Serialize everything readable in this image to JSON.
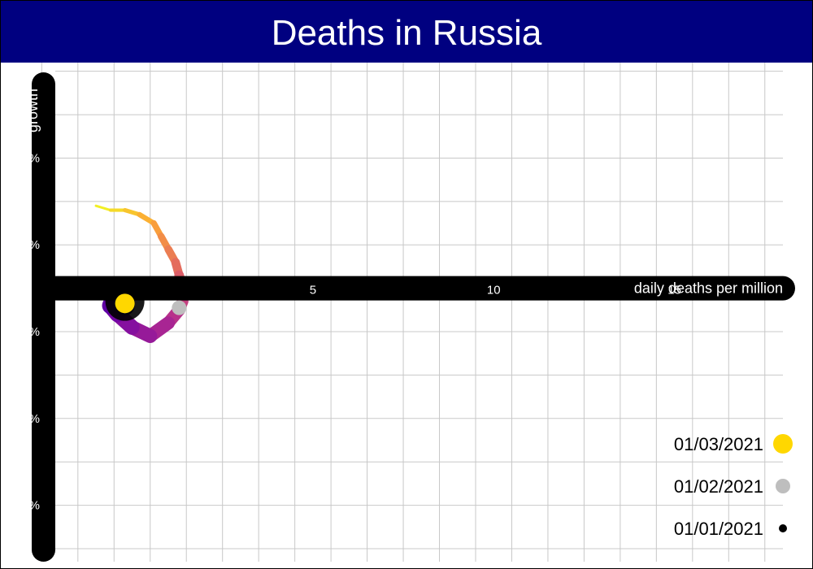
{
  "header": {
    "title": "Deaths in Russia"
  },
  "colors": {
    "header_bg": "#000080",
    "axis_bar": "#000000",
    "grid": "#c8c8c8",
    "axis_text": "#ffffff",
    "legend_text": "#000000"
  },
  "chart_data": {
    "type": "scatter",
    "title": "Deaths in Russia",
    "xlabel": "daily deaths per million",
    "ylabel": "growth",
    "xlim": [
      -2.8,
      18.0
    ],
    "ylim": [
      -6.3,
      5.2
    ],
    "x_ticks": [
      5,
      10,
      15
    ],
    "x_tick_labels": [
      "5",
      "10",
      "15"
    ],
    "y_ticks": [
      3,
      1,
      -1,
      -3,
      -5
    ],
    "y_tick_labels": [
      "3%",
      "1%",
      "-1%",
      "-3%",
      "-5%"
    ],
    "grid": true,
    "legend_position": "bottom-right",
    "trajectory_color_scale": [
      "#0d0887",
      "#6a00a8",
      "#b12a90",
      "#e16462",
      "#fca636",
      "#f0f921"
    ],
    "trajectory": [
      {
        "x": -1.0,
        "y": 1.9
      },
      {
        "x": -0.6,
        "y": 1.8
      },
      {
        "x": -0.2,
        "y": 1.8
      },
      {
        "x": 0.2,
        "y": 1.7
      },
      {
        "x": 0.6,
        "y": 1.5
      },
      {
        "x": 0.8,
        "y": 1.2
      },
      {
        "x": 1.0,
        "y": 0.9
      },
      {
        "x": 1.2,
        "y": 0.6
      },
      {
        "x": 1.3,
        "y": 0.3
      },
      {
        "x": 1.4,
        "y": 0.0
      },
      {
        "x": 1.4,
        "y": -0.3
      },
      {
        "x": 1.3,
        "y": -0.5
      },
      {
        "x": 1.0,
        "y": -0.8
      },
      {
        "x": 0.5,
        "y": -1.1
      },
      {
        "x": 0.0,
        "y": -0.9
      },
      {
        "x": -0.4,
        "y": -0.6
      },
      {
        "x": -0.6,
        "y": -0.4
      },
      {
        "x": -0.5,
        "y": -0.2
      },
      {
        "x": -0.3,
        "y": 0.0
      },
      {
        "x": -0.2,
        "y": -0.1
      },
      {
        "x": -0.2,
        "y": -0.4
      }
    ],
    "points": [
      {
        "label": "01/03/2021",
        "x": -0.2,
        "y": -0.35,
        "color": "#ffd700"
      },
      {
        "label": "01/02/2021",
        "x": 1.3,
        "y": -0.45,
        "color": "#bebebe"
      },
      {
        "label": "01/01/2021",
        "x": -0.2,
        "y": -0.3,
        "color": "#000000"
      }
    ],
    "legend": [
      {
        "label": "01/03/2021",
        "color": "#ffd700"
      },
      {
        "label": "01/02/2021",
        "color": "#bebebe"
      },
      {
        "label": "01/01/2021",
        "color": "#000000"
      }
    ]
  }
}
